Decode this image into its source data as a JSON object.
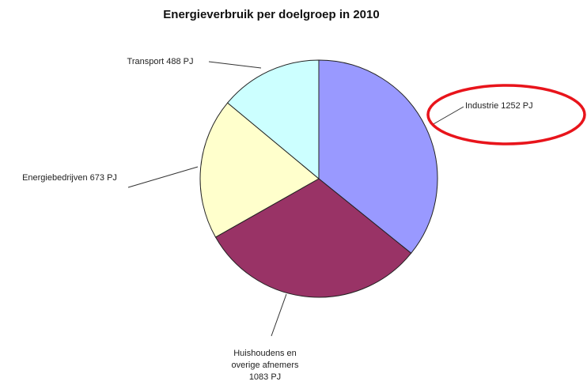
{
  "chart_data": {
    "type": "pie",
    "title": "Energieverbruik per doelgroep in 2010",
    "values": [
      1252,
      1083,
      673,
      488
    ],
    "value_labels": [
      "Industrie 1252 PJ",
      "Huishoudens en overige afnemers 1083 PJ",
      "Energiebedrijven 673 PJ",
      "Transport 488 PJ"
    ],
    "colors": [
      "#9999ff",
      "#993366",
      "#ffffcc",
      "#ccffff"
    ]
  }
}
